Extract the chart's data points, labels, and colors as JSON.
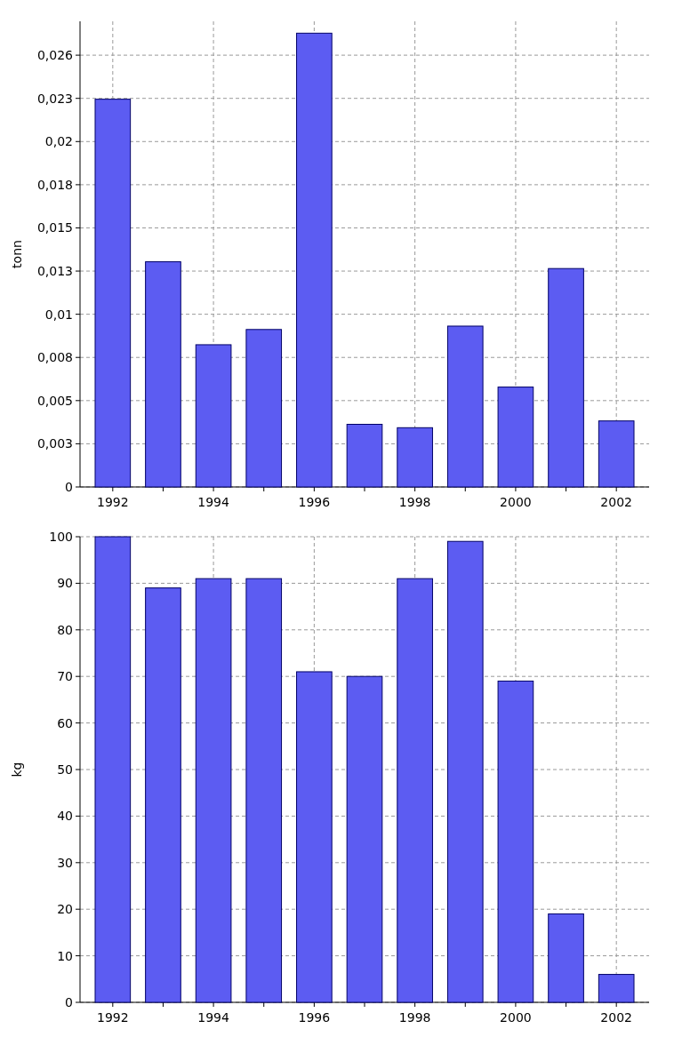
{
  "chart_data": [
    {
      "type": "bar",
      "ylabel": "tonn",
      "categories": [
        "1992",
        null,
        "1994",
        null,
        "1996",
        null,
        "1998",
        null,
        "2000",
        null,
        "2002"
      ],
      "values": [
        0.0229,
        0.0133,
        0.0084,
        0.0093,
        0.0268,
        0.0037,
        0.0035,
        0.0095,
        0.0059,
        0.0129,
        0.0039
      ],
      "color": "#5c5cf2",
      "ylim": [
        0,
        0.0275
      ],
      "yticks": [
        0,
        {
          "value": 0.00255,
          "label": "0,003"
        },
        {
          "value": 0.0051,
          "label": "0,005"
        },
        {
          "value": 0.00765,
          "label": "0,008"
        },
        {
          "value": 0.0102,
          "label": "0,01"
        },
        {
          "value": 0.01275,
          "label": "0,013"
        },
        {
          "value": 0.0153,
          "label": "0,015"
        },
        {
          "value": 0.01785,
          "label": "0,018"
        },
        {
          "value": 0.0204,
          "label": "0,02"
        },
        {
          "value": 0.02295,
          "label": "0,023"
        },
        {
          "value": 0.0255,
          "label": "0,026"
        }
      ],
      "grid": true
    },
    {
      "type": "bar",
      "ylabel": "kg",
      "categories": [
        "1992",
        null,
        "1994",
        null,
        "1996",
        null,
        "1998",
        null,
        "2000",
        null,
        "2002"
      ],
      "values": [
        100,
        89,
        91,
        91,
        71,
        70,
        91,
        99,
        69,
        19,
        6
      ],
      "color": "#5c5cf2",
      "ylim": [
        0,
        100
      ],
      "yticks": [
        0,
        10,
        20,
        30,
        40,
        50,
        60,
        70,
        80,
        90,
        100
      ],
      "grid": true
    }
  ]
}
